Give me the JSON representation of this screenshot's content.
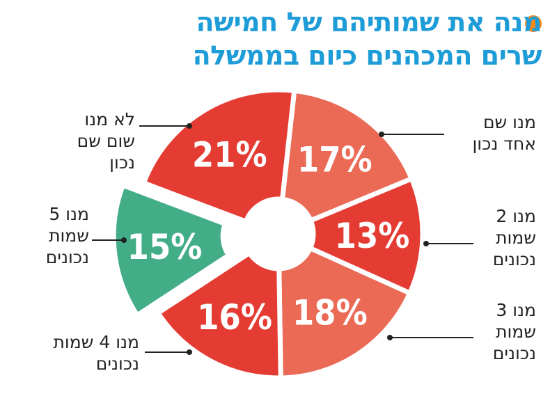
{
  "header": {
    "title_line1": "מנה את שמותיהם של חמישה",
    "title_line2": "שרים המכהנים כיום בממשלה"
  },
  "colors": {
    "title": "#1e9cd8",
    "bullet": "#f28a1f",
    "red": "#e43c33",
    "salmon": "#ea6a55",
    "green": "#42ad86"
  },
  "chart_data": {
    "type": "pie",
    "title": "מנה את שמותיהם של חמישה שרים המכהנים כיום בממשלה",
    "slices": [
      {
        "label": "לא מנו שום שם נכון",
        "value": 21,
        "display": "21%",
        "color": "#e43c33"
      },
      {
        "label": "מנו שם אחד נכון",
        "value": 17,
        "display": "17%",
        "color": "#ea6a55"
      },
      {
        "label": "מנו 2 שמות נכונים",
        "value": 13,
        "display": "13%",
        "color": "#e43c33"
      },
      {
        "label": "מנו 3 שמות נכונים",
        "value": 18,
        "display": "18%",
        "color": "#ea6a55"
      },
      {
        "label": "מנו 4 שמות נכונים",
        "value": 16,
        "display": "16%",
        "color": "#e43c33"
      },
      {
        "label": "מנו 5 שמות נכונים",
        "value": 15,
        "display": "15%",
        "color": "#42ad86",
        "exploded": true
      }
    ]
  },
  "labels": [
    {
      "lines": [
        "לא מנו",
        "שום שם",
        "נכון"
      ]
    },
    {
      "lines": [
        "מנו שם",
        "אחד נכון"
      ]
    },
    {
      "lines": [
        "מנו 2",
        "שמות",
        "נכונים"
      ]
    },
    {
      "lines": [
        "מנו 3",
        "שמות",
        "נכונים"
      ]
    },
    {
      "lines": [
        "מנו 4 שמות",
        "נכונים"
      ]
    },
    {
      "lines": [
        "מנו 5",
        "שמות",
        "נכונים"
      ]
    }
  ]
}
